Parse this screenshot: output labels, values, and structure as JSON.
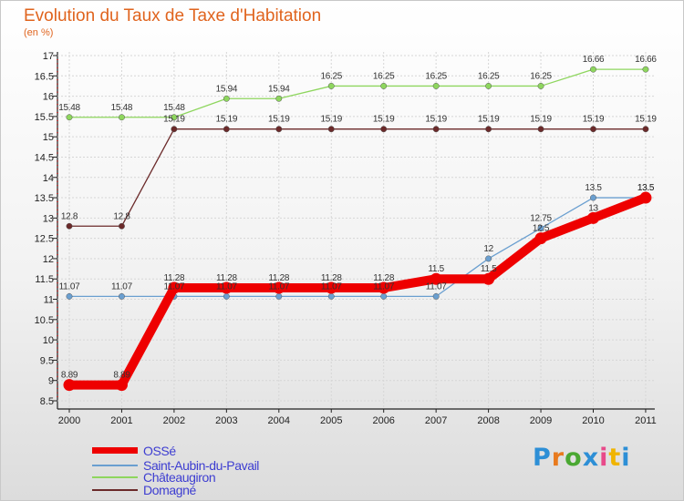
{
  "title": "Evolution du Taux de Taxe d'Habitation",
  "subtitle": "(en %)",
  "logo": {
    "letters": [
      "P",
      "r",
      "o",
      "x",
      "i",
      "t",
      "i"
    ],
    "colors": [
      "#2d8fd6",
      "#e87a1e",
      "#4aa832",
      "#2d8fd6",
      "#e84a8a",
      "#f0b400",
      "#2d8fd6"
    ]
  },
  "chart_data": {
    "type": "line",
    "title": "Evolution du Taux de Taxe d'Habitation",
    "ylabel": "(en %)",
    "categories": [
      "2000",
      "2001",
      "2002",
      "2003",
      "2004",
      "2005",
      "2006",
      "2007",
      "2008",
      "2009",
      "2010",
      "2011"
    ],
    "ylim": [
      8.5,
      17
    ],
    "yticks": [
      "8.5",
      "9",
      "9.5",
      "10",
      "10.5",
      "11",
      "11.5",
      "12",
      "12.5",
      "13",
      "13.5",
      "14",
      "14.5",
      "15",
      "15.5",
      "16",
      "16.5",
      "17"
    ],
    "series": [
      {
        "name": "Saint-Aubin-du-Pavail",
        "color": "#6a9fd0",
        "values": [
          11.07,
          11.07,
          11.07,
          11.07,
          11.07,
          11.07,
          11.07,
          11.07,
          12,
          12.75,
          13.5,
          13.5
        ],
        "labels": [
          "11.07",
          "11.07",
          "11.07",
          "11.07",
          "11.07",
          "11.07",
          "11.07",
          "11.07",
          "12",
          "12.75",
          "13.5",
          "13.5"
        ]
      },
      {
        "name": "Châteaugiron",
        "color": "#8ed65e",
        "values": [
          15.48,
          15.48,
          15.48,
          15.94,
          15.94,
          16.25,
          16.25,
          16.25,
          16.25,
          16.25,
          16.66,
          16.66
        ],
        "labels": [
          "15.48",
          "15.48",
          "15.48",
          "15.94",
          "15.94",
          "16.25",
          "16.25",
          "16.25",
          "16.25",
          "16.25",
          "16.66",
          "16.66"
        ]
      },
      {
        "name": "Domagné",
        "color": "#6b2a2a",
        "values": [
          12.8,
          12.8,
          15.19,
          15.19,
          15.19,
          15.19,
          15.19,
          15.19,
          15.19,
          15.19,
          15.19,
          15.19
        ],
        "labels": [
          "12.8",
          "12.8",
          "15.19",
          "15.19",
          "15.19",
          "15.19",
          "15.19",
          "15.19",
          "15.19",
          "15.19",
          "15.19",
          "15.19"
        ]
      },
      {
        "name": "OSSé",
        "color": "#ee0000",
        "values": [
          8.89,
          8.89,
          11.28,
          11.28,
          11.28,
          11.28,
          11.28,
          11.5,
          11.5,
          12.5,
          13,
          13.5
        ],
        "labels": [
          "8.89",
          "8.89",
          "11.28",
          "11.28",
          "11.28",
          "11.28",
          "11.28",
          "11.5",
          "11.5",
          "12.5",
          "13",
          "13.5"
        ]
      }
    ],
    "legend": [
      "OSSé",
      "Saint-Aubin-du-Pavail",
      "Châteaugiron",
      "Domagné"
    ]
  }
}
